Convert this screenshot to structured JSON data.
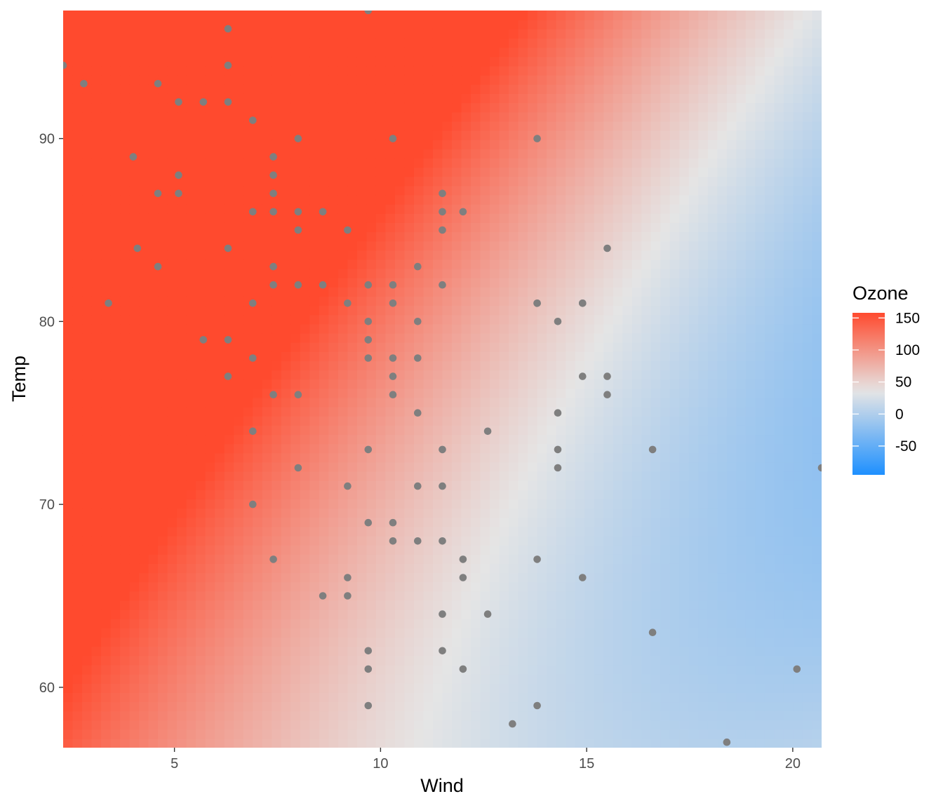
{
  "chart_data": {
    "type": "scatter",
    "subtype": "scatter over a continuous-colour surface fill (heatmap)",
    "xlabel": "Wind",
    "ylabel": "Temp",
    "xlim": [
      2.3,
      20.7
    ],
    "ylim": [
      56.7,
      97.0
    ],
    "x_ticks": [
      5,
      10,
      15,
      20
    ],
    "y_ticks": [
      60,
      70,
      80,
      90
    ],
    "x_tick_labels": [
      "5",
      "10",
      "15",
      "20"
    ],
    "y_tick_labels": [
      "60",
      "70",
      "80",
      "90"
    ],
    "grid": false,
    "legend": {
      "title": "Ozone",
      "placement": "right",
      "type": "continuous colour bar",
      "range": [
        -95,
        158
      ],
      "breaks": [
        150,
        100,
        50,
        0,
        -50
      ],
      "labels": [
        "150",
        "100",
        "50",
        "0",
        "-50"
      ],
      "colors": {
        "low": "#1E90FF",
        "mid": "#E5E5E5",
        "high": "#FF4A2E"
      },
      "midpoint": 35
    },
    "point_color": "#7f7f7f",
    "fill_surface": {
      "description": "Ozone fitted as a smooth surface over Wind and Temp",
      "value_range": [
        -95,
        158
      ]
    },
    "points": {
      "x": [
        2.3,
        2.8,
        4.6,
        5.1,
        5.7,
        6.3,
        6.3,
        6.3,
        6.9,
        8.0,
        9.7,
        4.0,
        5.1,
        7.4,
        4.6,
        5.1,
        7.4,
        6.9,
        7.4,
        8.0,
        8.6,
        7.4,
        8.0,
        9.2,
        4.1,
        6.3,
        4.6,
        7.4,
        7.4,
        8.0,
        8.6,
        3.4,
        6.9,
        9.2,
        5.7,
        6.3,
        6.9,
        6.3,
        7.4,
        8.0,
        6.9,
        8.0,
        6.9,
        7.4,
        9.2,
        8.6,
        9.2,
        9.2,
        10.3,
        11.5,
        11.5,
        12.0,
        11.5,
        10.9,
        9.7,
        10.3,
        11.5,
        9.7,
        10.3,
        9.7,
        10.9,
        9.7,
        10.3,
        10.9,
        10.3,
        10.3,
        10.9,
        12.6,
        11.5,
        9.7,
        10.9,
        11.5,
        9.7,
        10.3,
        10.3,
        10.9,
        11.5,
        12.0,
        12.0,
        11.5,
        12.6,
        9.7,
        11.5,
        9.7,
        12.0,
        9.7,
        13.8,
        13.8,
        15.5,
        13.8,
        14.9,
        14.9,
        14.3,
        14.9,
        15.5,
        15.5,
        14.3,
        14.3,
        16.6,
        14.3,
        20.7,
        13.8,
        14.9,
        16.6,
        20.1,
        13.8,
        13.2,
        18.4
      ],
      "y": [
        94,
        93,
        93,
        92,
        92,
        96,
        94,
        92,
        91,
        90,
        97,
        89,
        88,
        89,
        87,
        87,
        88,
        86,
        86,
        86,
        86,
        87,
        85,
        85,
        84,
        84,
        83,
        83,
        82,
        82,
        82,
        81,
        81,
        81,
        79,
        79,
        78,
        77,
        76,
        76,
        74,
        72,
        70,
        67,
        71,
        65,
        66,
        65,
        90,
        87,
        86,
        86,
        85,
        83,
        82,
        82,
        82,
        80,
        81,
        79,
        80,
        78,
        78,
        78,
        77,
        76,
        75,
        74,
        73,
        73,
        71,
        71,
        69,
        69,
        68,
        68,
        68,
        67,
        66,
        64,
        64,
        62,
        62,
        61,
        61,
        59,
        90,
        81,
        84,
        81,
        81,
        81,
        80,
        77,
        77,
        76,
        75,
        73,
        73,
        72,
        72,
        67,
        66,
        63,
        61,
        59,
        58,
        57
      ]
    }
  }
}
